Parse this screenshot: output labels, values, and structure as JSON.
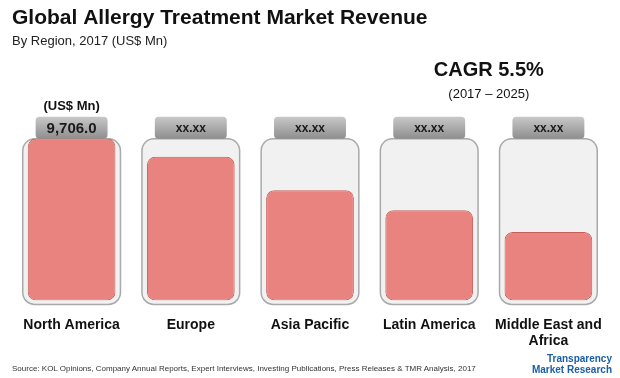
{
  "chart_data": {
    "type": "bar",
    "title": "Global Allergy Treatment Market Revenue",
    "subtitle": "By Region, 2017 (US$ Mn)",
    "categories": [
      "North America",
      "Europe",
      "Asia Pacific",
      "Latin America",
      "Middle East and Africa"
    ],
    "values": [
      9706.0,
      8600,
      6600,
      5400,
      4100
    ],
    "value_labels": [
      "9,706.0",
      "xx.xx",
      "xx.xx",
      "xx.xx",
      "xx.xx"
    ],
    "color": "#e8837f",
    "ylim": [
      0,
      11000
    ],
    "grid": false,
    "legend": false,
    "data_labels": true,
    "tick_labels": "x",
    "annotations": [
      "(US$ Mn)",
      "CAGR 5.5%",
      "(2017 – 2025)"
    ],
    "source": "Source: KOL Opinions, Company Annual Reports, Expert Interviews, Investing Publications, Press Releases & TMR Analysis, 2017",
    "logo": "Transparency Market Research"
  }
}
